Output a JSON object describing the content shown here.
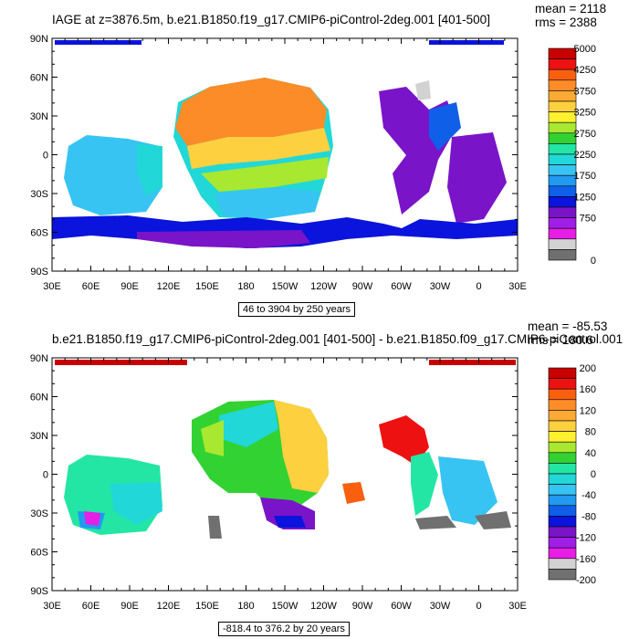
{
  "chart_data": [
    {
      "type": "heatmap",
      "title": "IAGE at z=3876.5m, b.e21.B1850.f19_g17.CMIP6-piControl-2deg.001 [401-500]",
      "stats": {
        "mean": "mean = 2118",
        "rms": "rms = 2388"
      },
      "range_label": "46 to 3904 by 250 years",
      "x_ticks": [
        "30E",
        "60E",
        "90E",
        "120E",
        "150E",
        "180",
        "150W",
        "120W",
        "90W",
        "60W",
        "30W",
        "0",
        "30E"
      ],
      "y_ticks": [
        "90N",
        "60N",
        "30N",
        "0",
        "30S",
        "60S",
        "90S"
      ],
      "xlim": [
        30,
        390
      ],
      "ylim": [
        -90,
        90
      ],
      "colorbar": {
        "labels": [
          "5000",
          "4250",
          "3750",
          "3250",
          "2750",
          "2250",
          "1750",
          "1250",
          "750",
          "0"
        ],
        "colors": [
          "#c80000",
          "#ee1111",
          "#f86010",
          "#fb8c28",
          "#fcaa34",
          "#fdd040",
          "#fff030",
          "#a8e830",
          "#32d232",
          "#24e6a4",
          "#22d7d7",
          "#38c4f2",
          "#219af0",
          "#0f5fe8",
          "#0a14dc",
          "#7a14c8",
          "#a01ee6",
          "#e61ee6",
          "#d2d2d2",
          "#707070"
        ]
      }
    },
    {
      "type": "heatmap",
      "title": "b.e21.B1850.f19_g17.CMIP6-piControl-2deg.001 [401-500] - b.e21.B1850.f09_g17.CMIP6-piControl.001",
      "stats": {
        "mean": "mean = -85.53",
        "rms": "rms = 180.6"
      },
      "range_label": "-818.4 to 376.2 by 20 years",
      "x_ticks": [
        "30E",
        "60E",
        "90E",
        "120E",
        "150E",
        "180",
        "150W",
        "120W",
        "90W",
        "60W",
        "30W",
        "0",
        "30E"
      ],
      "y_ticks": [
        "90N",
        "60N",
        "30N",
        "0",
        "30S",
        "60S",
        "90S"
      ],
      "xlim": [
        30,
        390
      ],
      "ylim": [
        -90,
        90
      ],
      "colorbar": {
        "labels": [
          "200",
          "160",
          "120",
          "80",
          "40",
          "0",
          "-40",
          "-80",
          "-120",
          "-160",
          "-200"
        ],
        "colors": [
          "#c80000",
          "#ee1111",
          "#f86010",
          "#fb8c28",
          "#fcaa34",
          "#fdd040",
          "#fff030",
          "#a8e830",
          "#32d232",
          "#24e6a4",
          "#22d7d7",
          "#38c4f2",
          "#219af0",
          "#0f5fe8",
          "#0a14dc",
          "#7a14c8",
          "#a01ee6",
          "#e61ee6",
          "#d2d2d2",
          "#707070"
        ]
      }
    }
  ]
}
